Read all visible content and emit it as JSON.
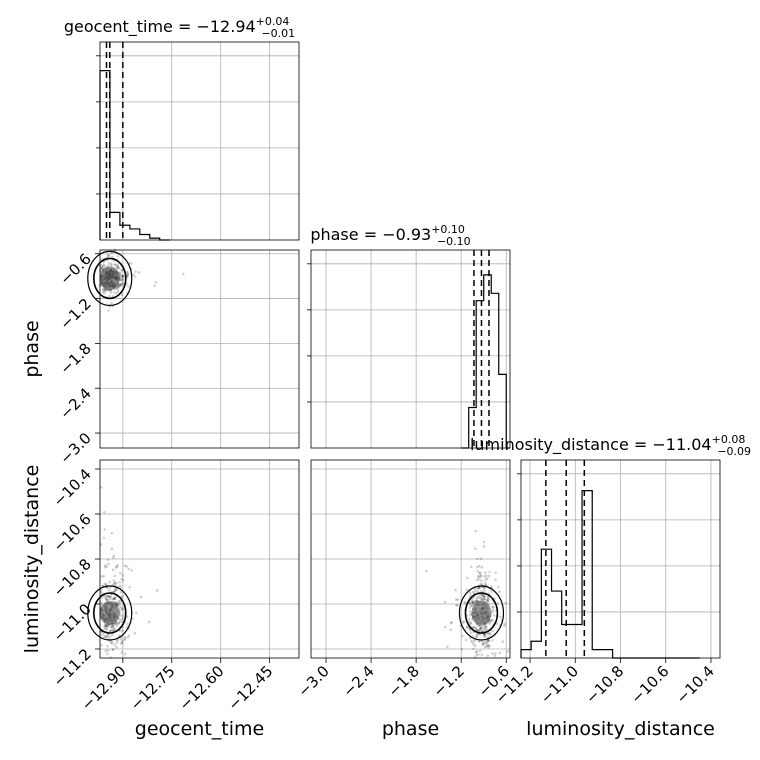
{
  "chart_data": {
    "type": "corner",
    "parameters": [
      "geocent_time",
      "phase",
      "luminosity_distance"
    ],
    "axis_labels": {
      "x": [
        "geocent_time",
        "phase",
        "luminosity_distance"
      ],
      "y": [
        "",
        "phase",
        "luminosity_distance"
      ]
    },
    "titles": {
      "geocent_time": {
        "base": "geocent_time = −12.94",
        "sup": "+0.04",
        "sub": "−0.01"
      },
      "phase": {
        "base": "phase = −0.93",
        "sup": "+0.10",
        "sub": "−0.10"
      },
      "luminosity_distance": {
        "base": "luminosity_distance = −11.04",
        "sup": "+0.08",
        "sub": "−0.09"
      }
    },
    "ranges": {
      "geocent_time": [
        -12.97,
        -12.36
      ],
      "phase": [
        -3.2,
        -0.55
      ],
      "luminosity_distance": [
        -11.24,
        -10.36
      ]
    },
    "ticks": {
      "geocent_time": {
        "values": [
          -12.9,
          -12.75,
          -12.6,
          -12.45
        ],
        "labels": [
          "−12.90",
          "−12.75",
          "−12.60",
          "−12.45"
        ]
      },
      "phase": {
        "values": [
          -3.0,
          -2.4,
          -1.8,
          -1.2,
          -0.6
        ],
        "labels": [
          "−3.0",
          "−2.4",
          "−1.8",
          "−1.2",
          "−0.6"
        ]
      },
      "luminosity_distance": {
        "values": [
          -11.2,
          -11.0,
          -10.8,
          -10.6,
          -10.4
        ],
        "labels": [
          "−11.2",
          "−11.0",
          "−10.8",
          "−10.6",
          "−10.4"
        ]
      }
    },
    "histograms": {
      "geocent_time": {
        "edges": [
          -12.97,
          -12.9395,
          -12.909,
          -12.8785,
          -12.848,
          -12.8175,
          -12.787,
          -12.7565
        ],
        "counts": [
          92,
          15,
          8,
          6,
          3,
          1,
          0
        ]
      },
      "phase": {
        "edges": [
          -1.2,
          -1.1,
          -1.0,
          -0.9,
          -0.8,
          -0.7,
          -0.6,
          -0.55
        ],
        "counts": [
          0,
          11,
          40,
          47,
          42,
          20,
          0
        ]
      },
      "luminosity_distance": {
        "edges": [
          -11.24,
          -11.195,
          -11.15,
          -11.105,
          -11.06,
          -11.015,
          -10.97,
          -10.925,
          -10.88,
          -10.835,
          -10.79,
          -10.745,
          -10.7,
          -10.655,
          -10.61,
          -10.565,
          -10.52,
          -10.475,
          -10.45
        ],
        "counts": [
          1,
          2,
          13,
          8,
          4,
          4,
          20,
          1,
          1,
          0,
          0,
          0,
          0,
          0,
          0,
          0,
          0,
          0
        ]
      }
    },
    "quantiles": {
      "geocent_time": [
        -12.95,
        -12.94,
        -12.9
      ],
      "phase": [
        -1.03,
        -0.93,
        -0.83
      ],
      "luminosity_distance": [
        -11.13,
        -11.04,
        -10.96
      ]
    },
    "grid": true
  }
}
